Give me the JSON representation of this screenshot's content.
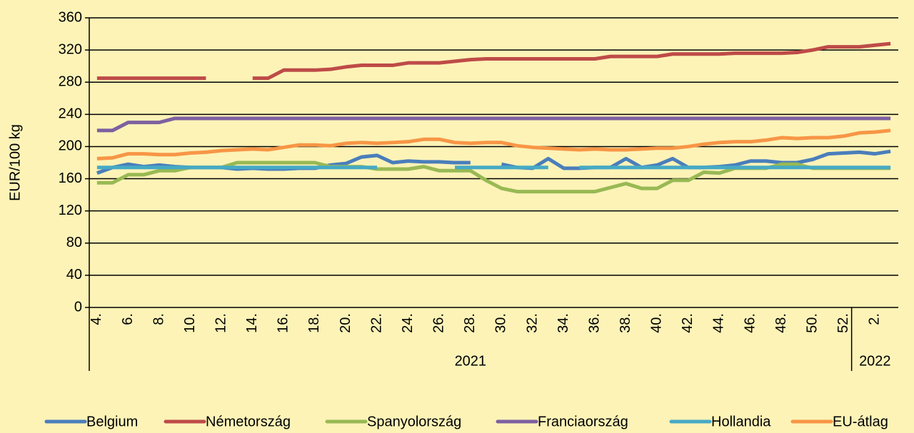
{
  "chart_data": {
    "type": "line",
    "y_label": "EUR/100 kg",
    "categories": [
      "4.",
      null,
      "6.",
      null,
      "8.",
      null,
      "10.",
      null,
      "12.",
      null,
      "14.",
      null,
      "16.",
      null,
      "18.",
      null,
      "20.",
      null,
      "22.",
      null,
      "24.",
      null,
      "26.",
      null,
      "28.",
      null,
      "30.",
      null,
      "32.",
      null,
      "34.",
      null,
      "36.",
      null,
      "38.",
      null,
      "40.",
      null,
      "42.",
      null,
      "44.",
      null,
      "46.",
      null,
      "48.",
      null,
      "50.",
      null,
      "52.",
      null,
      "2.",
      null
    ],
    "x_groups": [
      {
        "label": "2021",
        "count": 49
      },
      {
        "label": "2022",
        "count": 3
      }
    ],
    "ylim": [
      0,
      360
    ],
    "yticks": [
      0,
      40,
      80,
      120,
      160,
      200,
      240,
      280,
      320,
      360
    ],
    "grid": true,
    "legend": "bottom",
    "series": [
      {
        "name": "Belgium",
        "color": "#4a7ebb",
        "values": [
          167,
          174,
          178,
          175,
          177,
          175,
          174,
          174,
          174,
          172,
          173,
          172,
          172,
          173,
          173,
          177,
          179,
          187,
          189,
          180,
          182,
          181,
          181,
          180,
          180,
          null,
          178,
          174,
          173,
          185,
          173,
          173,
          174,
          174,
          185,
          174,
          177,
          185,
          174,
          174,
          175,
          177,
          182,
          182,
          180,
          180,
          184,
          191,
          192,
          193,
          191,
          194
        ]
      },
      {
        "name": "Németország",
        "color": "#be4b48",
        "values": [
          285,
          285,
          285,
          285,
          285,
          285,
          285,
          285,
          null,
          null,
          285,
          285,
          295,
          295,
          295,
          296,
          299,
          301,
          301,
          301,
          304,
          304,
          304,
          306,
          308,
          309,
          309,
          309,
          309,
          309,
          309,
          309,
          309,
          312,
          312,
          312,
          312,
          315,
          315,
          315,
          315,
          316,
          316,
          316,
          316,
          317,
          320,
          324,
          324,
          324,
          326,
          328
        ]
      },
      {
        "name": "Spanyolország",
        "color": "#98b954",
        "values": [
          155,
          155,
          165,
          165,
          170,
          170,
          174,
          174,
          174,
          180,
          180,
          180,
          180,
          180,
          180,
          175,
          175,
          175,
          172,
          172,
          172,
          175,
          170,
          170,
          170,
          158,
          148,
          144,
          144,
          144,
          144,
          144,
          144,
          149,
          154,
          148,
          148,
          158,
          158,
          168,
          167,
          173,
          173,
          173,
          178,
          178,
          173,
          173,
          173,
          173,
          173,
          173
        ]
      },
      {
        "name": "Franciaország",
        "color": "#7d60a0",
        "values": [
          220,
          220,
          230,
          230,
          230,
          235,
          235,
          235,
          235,
          235,
          235,
          235,
          235,
          235,
          235,
          235,
          235,
          235,
          235,
          235,
          235,
          235,
          235,
          235,
          235,
          235,
          235,
          235,
          235,
          235,
          235,
          235,
          235,
          235,
          235,
          235,
          235,
          235,
          235,
          235,
          235,
          235,
          235,
          235,
          235,
          235,
          235,
          235,
          235,
          235,
          235,
          235
        ]
      },
      {
        "name": "Hollandia",
        "color": "#46aac5",
        "values": [
          174,
          174,
          174,
          174,
          174,
          174,
          174,
          174,
          174,
          174,
          174,
          174,
          174,
          174,
          174,
          174,
          174,
          174,
          174,
          null,
          null,
          null,
          null,
          174,
          174,
          174,
          174,
          174,
          174,
          174,
          null,
          174,
          174,
          174,
          174,
          174,
          174,
          174,
          174,
          174,
          174,
          174,
          174,
          174,
          174,
          174,
          174,
          174,
          174,
          174,
          174,
          174
        ]
      },
      {
        "name": "EU-átlag",
        "color": "#f79646",
        "values": [
          185,
          186,
          191,
          191,
          190,
          190,
          192,
          193,
          195,
          196,
          197,
          196,
          199,
          202,
          202,
          201,
          204,
          205,
          204,
          205,
          206,
          209,
          209,
          205,
          204,
          205,
          205,
          201,
          199,
          198,
          197,
          196,
          197,
          196,
          196,
          197,
          198,
          198,
          200,
          203,
          205,
          206,
          206,
          208,
          211,
          210,
          211,
          211,
          213,
          217,
          218,
          220
        ]
      }
    ]
  }
}
